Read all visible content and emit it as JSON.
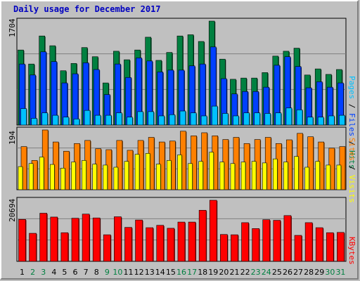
{
  "title": "Daily usage for December 2017",
  "colors": {
    "background": "#c0c0c0",
    "title": "#0000c0",
    "hits": "#008040",
    "files": "#0040ff",
    "pages": "#00c0ff",
    "visits": "#ff8000",
    "sites": "#ffff00",
    "kbytes": "#ff0000",
    "weekend_label": "#008040",
    "weekday_label": "#000000"
  },
  "chart_data": [
    {
      "type": "bar",
      "name": "top-panel",
      "ymax_label": "1704",
      "ylim": [
        0,
        1704
      ],
      "legend": [
        "Pages",
        "Files",
        "Hits"
      ],
      "legend_colors": [
        "#00c0ff",
        "#0040ff",
        "#008040"
      ],
      "categories": [
        "1",
        "2",
        "3",
        "4",
        "5",
        "6",
        "7",
        "8",
        "9",
        "10",
        "11",
        "12",
        "13",
        "14",
        "15",
        "16",
        "17",
        "18",
        "19",
        "20",
        "21",
        "22",
        "23",
        "24",
        "25",
        "26",
        "27",
        "28",
        "29",
        "30",
        "31"
      ],
      "weekend": [
        false,
        true,
        true,
        false,
        false,
        false,
        false,
        false,
        true,
        true,
        false,
        false,
        false,
        false,
        false,
        true,
        true,
        false,
        false,
        false,
        false,
        false,
        true,
        true,
        false,
        false,
        false,
        false,
        false,
        true,
        true
      ],
      "series": [
        {
          "name": "Hits",
          "values": [
            1230,
            1000,
            1460,
            1300,
            890,
            1010,
            1270,
            1120,
            690,
            1210,
            1070,
            1230,
            1440,
            1060,
            1190,
            1460,
            1480,
            1370,
            1704,
            1080,
            750,
            770,
            770,
            860,
            1130,
            1210,
            1260,
            820,
            920,
            830,
            910
          ]
        },
        {
          "name": "Files",
          "values": [
            1000,
            820,
            1200,
            1040,
            690,
            840,
            1020,
            910,
            500,
            1000,
            780,
            1100,
            1050,
            870,
            900,
            900,
            970,
            1000,
            1280,
            760,
            510,
            550,
            550,
            620,
            980,
            1120,
            960,
            610,
            710,
            620,
            690
          ]
        },
        {
          "name": "Pages",
          "values": [
            270,
            110,
            200,
            160,
            130,
            100,
            240,
            160,
            160,
            200,
            130,
            220,
            220,
            150,
            170,
            230,
            200,
            150,
            310,
            190,
            150,
            200,
            200,
            190,
            200,
            280,
            250,
            130,
            130,
            150,
            160
          ]
        }
      ]
    },
    {
      "type": "bar",
      "name": "middle-panel",
      "ymax_label": "194",
      "ylim": [
        0,
        194
      ],
      "legend": [
        "Sites",
        "Visits"
      ],
      "legend_colors": [
        "#ffff00",
        "#ff8000"
      ],
      "categories": [
        "1",
        "2",
        "3",
        "4",
        "5",
        "6",
        "7",
        "8",
        "9",
        "10",
        "11",
        "12",
        "13",
        "14",
        "15",
        "16",
        "17",
        "18",
        "19",
        "20",
        "21",
        "22",
        "23",
        "24",
        "25",
        "26",
        "27",
        "28",
        "29",
        "30",
        "31"
      ],
      "series": [
        {
          "name": "Visits",
          "values": [
            140,
            95,
            194,
            155,
            125,
            150,
            160,
            133,
            130,
            160,
            128,
            160,
            170,
            155,
            158,
            190,
            175,
            185,
            175,
            163,
            170,
            150,
            163,
            170,
            150,
            162,
            183,
            172,
            155,
            135,
            140
          ]
        },
        {
          "name": "Sites",
          "values": [
            75,
            85,
            106,
            82,
            70,
            90,
            95,
            83,
            80,
            73,
            92,
            115,
            118,
            83,
            95,
            113,
            85,
            92,
            122,
            90,
            85,
            90,
            92,
            87,
            100,
            90,
            108,
            73,
            92,
            80,
            80
          ]
        }
      ]
    },
    {
      "type": "bar",
      "name": "bottom-panel",
      "ymax_label": "20694",
      "ylim": [
        0,
        20694
      ],
      "legend": [
        "KBytes"
      ],
      "legend_colors": [
        "#ff0000"
      ],
      "categories": [
        "1",
        "2",
        "3",
        "4",
        "5",
        "6",
        "7",
        "8",
        "9",
        "10",
        "11",
        "12",
        "13",
        "14",
        "15",
        "16",
        "17",
        "18",
        "19",
        "20",
        "21",
        "22",
        "23",
        "24",
        "25",
        "26",
        "27",
        "28",
        "29",
        "30",
        "31"
      ],
      "series": [
        {
          "name": "KBytes",
          "values": [
            14200,
            9500,
            16300,
            15000,
            9700,
            14600,
            16000,
            14700,
            9000,
            15100,
            11500,
            14000,
            11400,
            12200,
            11200,
            13300,
            13300,
            17300,
            20694,
            9100,
            9000,
            13100,
            11100,
            14100,
            13900,
            15500,
            8800,
            13100,
            11400,
            9700,
            9800
          ]
        }
      ]
    }
  ]
}
